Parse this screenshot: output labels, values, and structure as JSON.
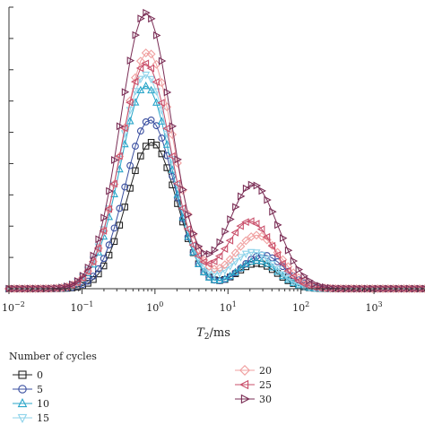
{
  "chart_data": {
    "type": "line",
    "xscale": "log",
    "xlim": [
      0.01,
      5000
    ],
    "ylim": [
      0,
      1.0
    ],
    "grid": false,
    "xlabel_main": "T",
    "xlabel_sub": "2",
    "xlabel_unit": "/ms",
    "x_ticks": [
      {
        "value": 0.01,
        "base": "10",
        "exp": "−2"
      },
      {
        "value": 0.1,
        "base": "10",
        "exp": "−1"
      },
      {
        "value": 1,
        "base": "10",
        "exp": "0"
      },
      {
        "value": 10,
        "base": "10",
        "exp": "1"
      },
      {
        "value": 100,
        "base": "10",
        "exp": "2"
      },
      {
        "value": 1000,
        "base": "10",
        "exp": "3"
      }
    ],
    "legend_title": "Number of cycles",
    "legend_position": "bottom",
    "series": [
      {
        "name": "0",
        "marker": "square",
        "color": "#222222",
        "peaks": [
          {
            "center": 0.9,
            "amp": 0.52,
            "width": 0.34
          },
          {
            "center": 25,
            "amp": 0.09,
            "width": 0.28
          }
        ]
      },
      {
        "name": "5",
        "marker": "circle",
        "color": "#3a4fa0",
        "peaks": [
          {
            "center": 0.85,
            "amp": 0.6,
            "width": 0.34
          },
          {
            "center": 30,
            "amp": 0.12,
            "width": 0.3
          }
        ]
      },
      {
        "name": "10",
        "marker": "triangle-up",
        "color": "#2aa6c9",
        "peaks": [
          {
            "center": 0.75,
            "amp": 0.72,
            "width": 0.35
          },
          {
            "center": 25,
            "amp": 0.1,
            "width": 0.28
          }
        ]
      },
      {
        "name": "15",
        "marker": "triangle-down",
        "color": "#8ed3ea",
        "peaks": [
          {
            "center": 0.75,
            "amp": 0.76,
            "width": 0.36
          },
          {
            "center": 22,
            "amp": 0.13,
            "width": 0.3
          }
        ]
      },
      {
        "name": "20",
        "marker": "diamond",
        "color": "#f0a0a0",
        "peaks": [
          {
            "center": 0.8,
            "amp": 0.84,
            "width": 0.36
          },
          {
            "center": 25,
            "amp": 0.19,
            "width": 0.32
          }
        ]
      },
      {
        "name": "25",
        "marker": "triangle-left",
        "color": "#c94f6a",
        "peaks": [
          {
            "center": 0.75,
            "amp": 0.8,
            "width": 0.35
          },
          {
            "center": 20,
            "amp": 0.24,
            "width": 0.32
          }
        ]
      },
      {
        "name": "30",
        "marker": "triangle-right",
        "color": "#7a2d55",
        "peaks": [
          {
            "center": 0.75,
            "amp": 0.98,
            "width": 0.35
          },
          {
            "center": 22,
            "amp": 0.37,
            "width": 0.34
          }
        ]
      }
    ]
  }
}
